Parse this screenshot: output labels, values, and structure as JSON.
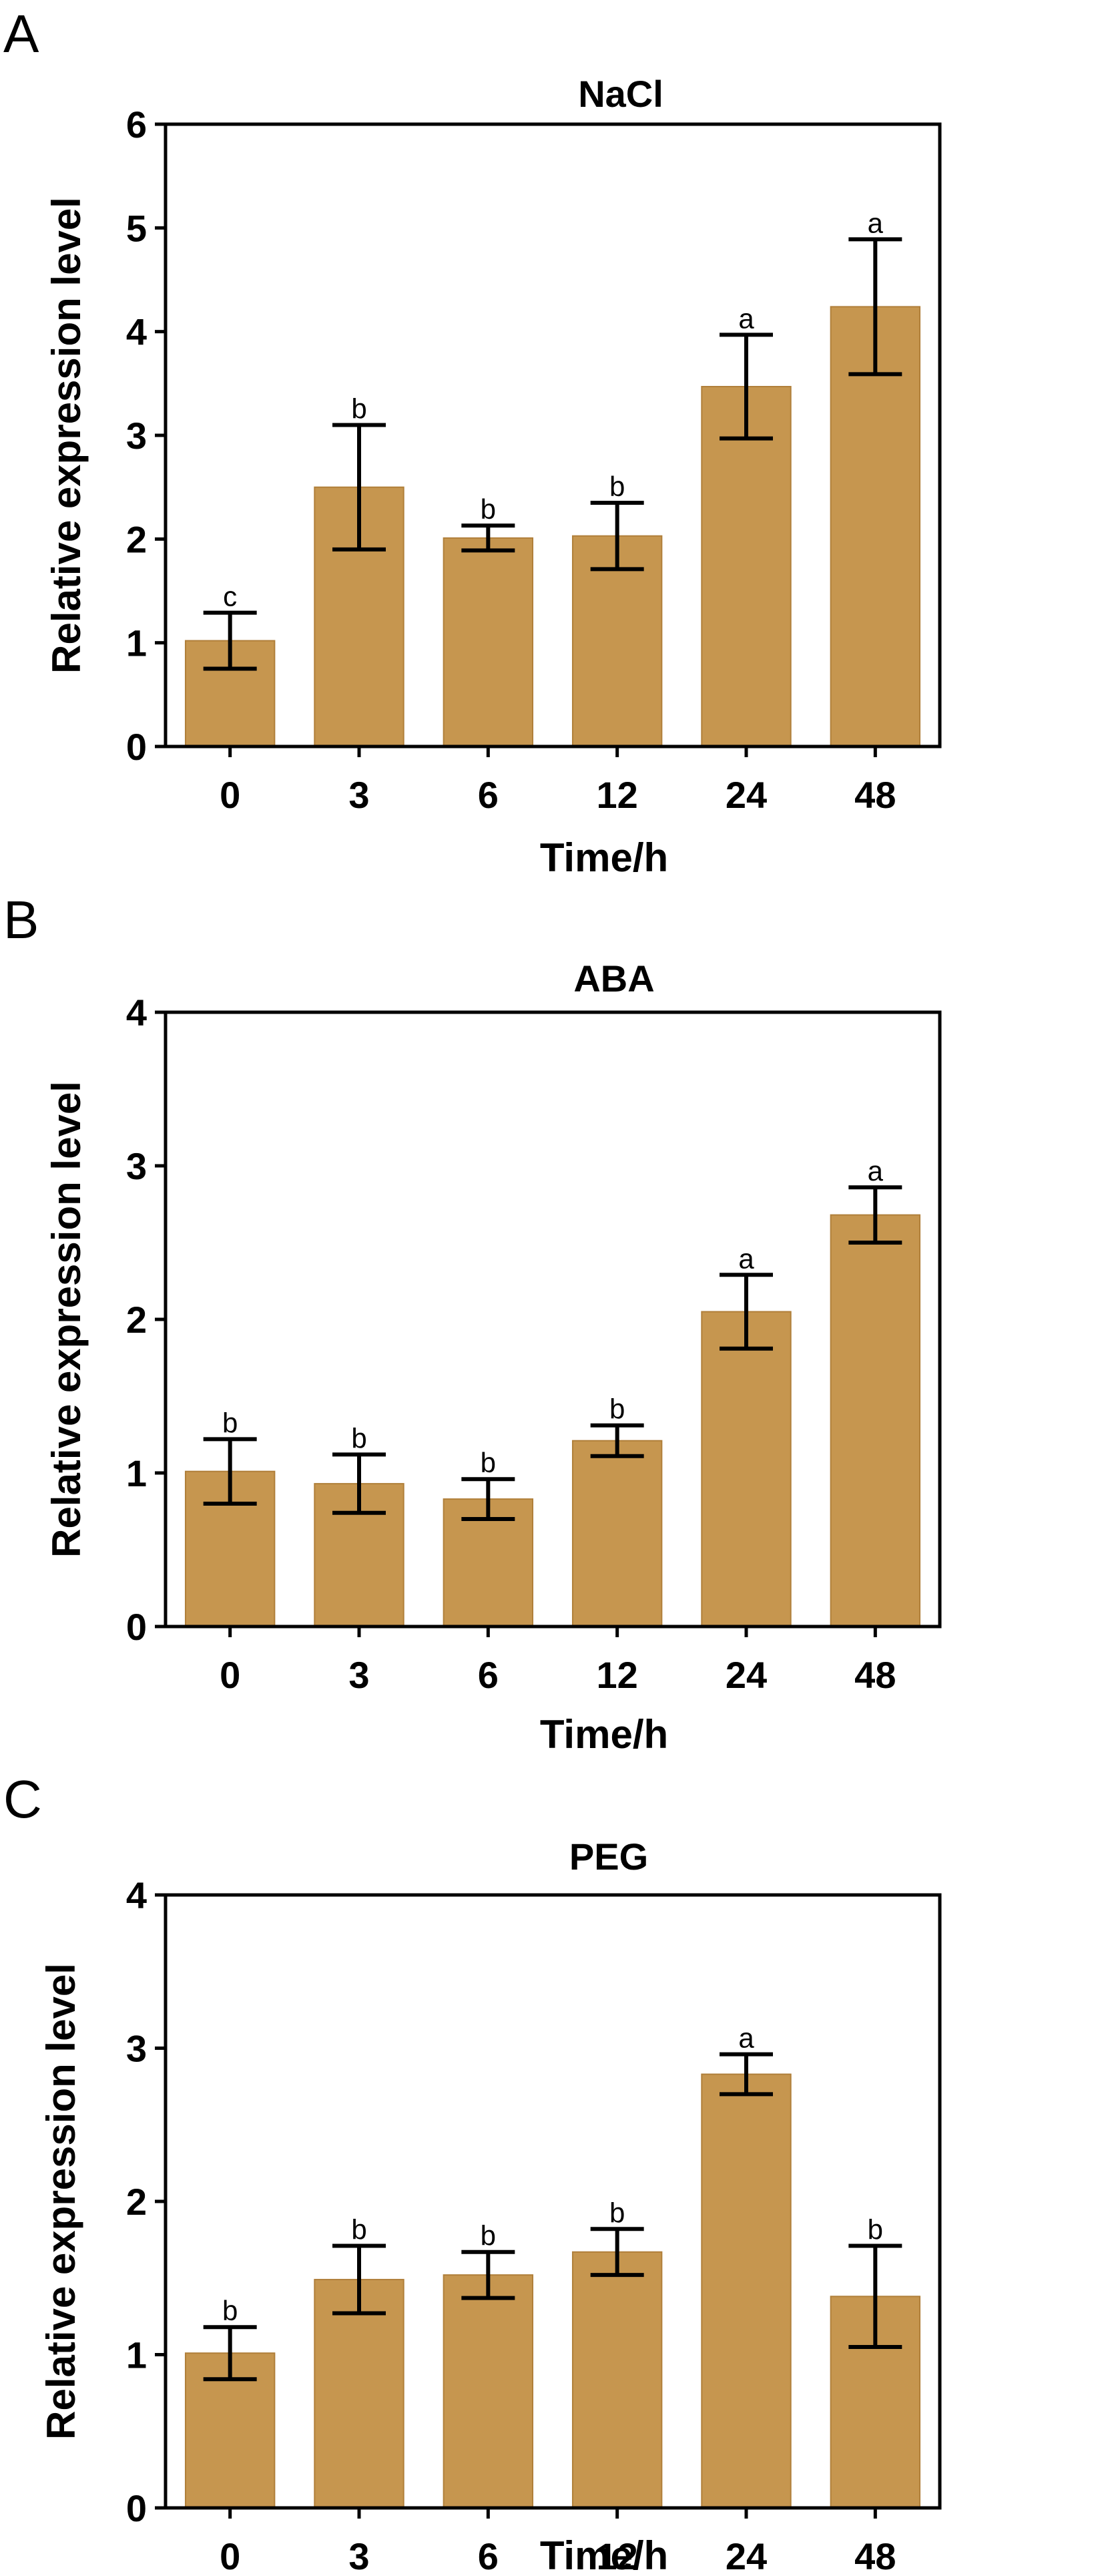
{
  "colors": {
    "bar_fill": "#C6964F",
    "bar_stroke": "#B07F3A",
    "axis": "#000000",
    "background": "#FFFFFF"
  },
  "chart_data": [
    {
      "panel": "A",
      "type": "bar",
      "title": "NaCl",
      "xlabel": "Time/h",
      "ylabel": "Relative expression level",
      "categories": [
        "0",
        "3",
        "6",
        "12",
        "24",
        "48"
      ],
      "values": [
        1.02,
        2.5,
        2.01,
        2.03,
        3.47,
        4.24
      ],
      "errors": [
        0.27,
        0.6,
        0.12,
        0.32,
        0.5,
        0.65
      ],
      "significance": [
        "c",
        "b",
        "b",
        "b",
        "a",
        "a"
      ],
      "ylim": [
        0,
        6
      ],
      "yticks": [
        "0",
        "1",
        "2",
        "3",
        "4",
        "5",
        "6"
      ],
      "grid": false
    },
    {
      "panel": "B",
      "type": "bar",
      "title": "ABA",
      "xlabel": "Time/h",
      "ylabel": "Relative expression level",
      "categories": [
        "0",
        "3",
        "6",
        "12",
        "24",
        "48"
      ],
      "values": [
        1.01,
        0.93,
        0.83,
        1.21,
        2.05,
        2.68
      ],
      "errors": [
        0.21,
        0.19,
        0.13,
        0.1,
        0.24,
        0.18
      ],
      "significance": [
        "b",
        "b",
        "b",
        "b",
        "a",
        "a"
      ],
      "ylim": [
        0,
        4
      ],
      "yticks": [
        "0",
        "1",
        "2",
        "3",
        "4"
      ],
      "grid": false
    },
    {
      "panel": "C",
      "type": "bar",
      "title": "PEG",
      "xlabel": "Time/h",
      "ylabel": "Relative expression level",
      "categories": [
        "0",
        "3",
        "6",
        "12",
        "24",
        "48"
      ],
      "values": [
        1.01,
        1.49,
        1.52,
        1.67,
        2.83,
        1.38
      ],
      "errors": [
        0.17,
        0.22,
        0.15,
        0.15,
        0.13,
        0.33
      ],
      "significance": [
        "b",
        "b",
        "b",
        "b",
        "a",
        "b"
      ],
      "ylim": [
        0,
        4
      ],
      "yticks": [
        "0",
        "1",
        "2",
        "3",
        "4"
      ],
      "grid": false
    }
  ]
}
